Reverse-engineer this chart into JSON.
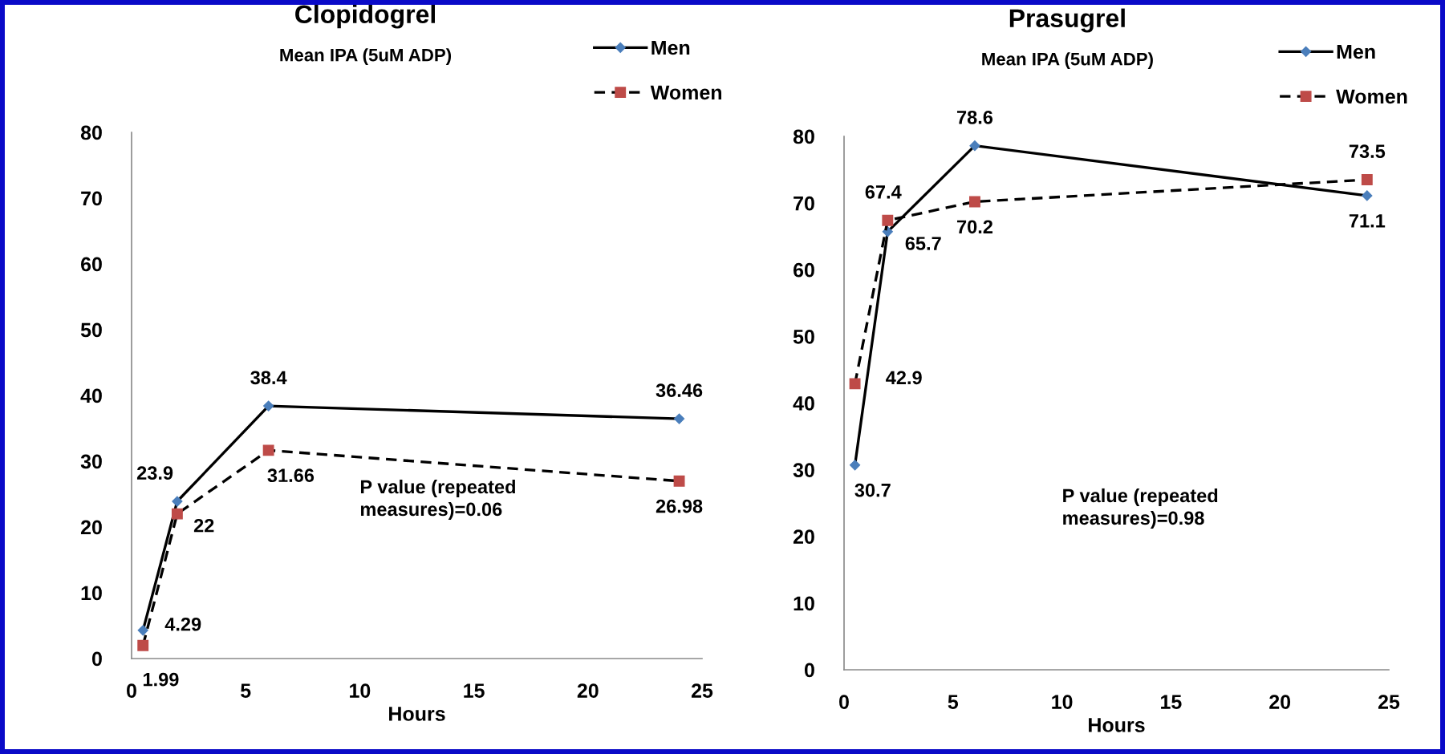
{
  "chart_data": [
    {
      "type": "line",
      "title": "Clopidogrel",
      "subtitle": "Mean IPA (5uM ADP)",
      "xlabel": "Hours",
      "x": [
        0.5,
        2,
        6,
        24
      ],
      "series": [
        {
          "name": "Men",
          "color": "#4a7ebb",
          "marker": "diamond",
          "line_style": "solid",
          "values": [
            4.29,
            23.9,
            38.4,
            36.46
          ]
        },
        {
          "name": "Women",
          "color": "#be4b48",
          "marker": "square",
          "line_style": "dashed",
          "values": [
            1.99,
            22,
            31.66,
            26.98
          ]
        }
      ],
      "xlim": [
        0,
        25
      ],
      "xticks": [
        0,
        5,
        10,
        15,
        20,
        25
      ],
      "ylim": [
        0,
        80
      ],
      "yticks": [
        0,
        10,
        20,
        30,
        40,
        50,
        60,
        70,
        80
      ],
      "legend": "top right",
      "data_labels": true,
      "annotations": [
        "P value (repeated\nmeasures)=0.06"
      ]
    },
    {
      "type": "line",
      "title": "Prasugrel",
      "subtitle": "Mean IPA (5uM ADP)",
      "xlabel": "Hours",
      "x": [
        0.5,
        2,
        6,
        24
      ],
      "series": [
        {
          "name": "Men",
          "color": "#4a7ebb",
          "marker": "diamond",
          "line_style": "solid",
          "values": [
            30.7,
            65.7,
            78.6,
            71.1
          ]
        },
        {
          "name": "Women",
          "color": "#be4b48",
          "marker": "square",
          "line_style": "dashed",
          "values": [
            42.9,
            67.4,
            70.2,
            73.5
          ]
        }
      ],
      "xlim": [
        0,
        25
      ],
      "xticks": [
        0,
        5,
        10,
        15,
        20,
        25
      ],
      "ylim": [
        0,
        80
      ],
      "yticks": [
        0,
        10,
        20,
        30,
        40,
        50,
        60,
        70,
        80
      ],
      "legend": "top right",
      "data_labels": true,
      "annotations": [
        "P value (repeated\nmeasures)=0.98"
      ]
    }
  ]
}
